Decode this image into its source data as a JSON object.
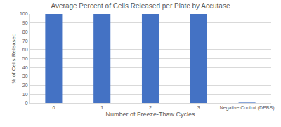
{
  "chart_data": {
    "type": "bar",
    "title": "Average Percent of Cells Released per Plate by Accutase",
    "x_label": "Number of Freeze-Thaw Cycles",
    "y_label": "% of Cells Released",
    "categories": [
      "0",
      "1",
      "2",
      "3",
      "Negative Control (DPBS)"
    ],
    "values": [
      100,
      100,
      100,
      100,
      0.5
    ],
    "color": "#4472c4",
    "ylim": [
      0,
      100
    ],
    "yticks": [
      0,
      10,
      20,
      30,
      40,
      50,
      60,
      70,
      80,
      90,
      100
    ],
    "grid": true
  }
}
